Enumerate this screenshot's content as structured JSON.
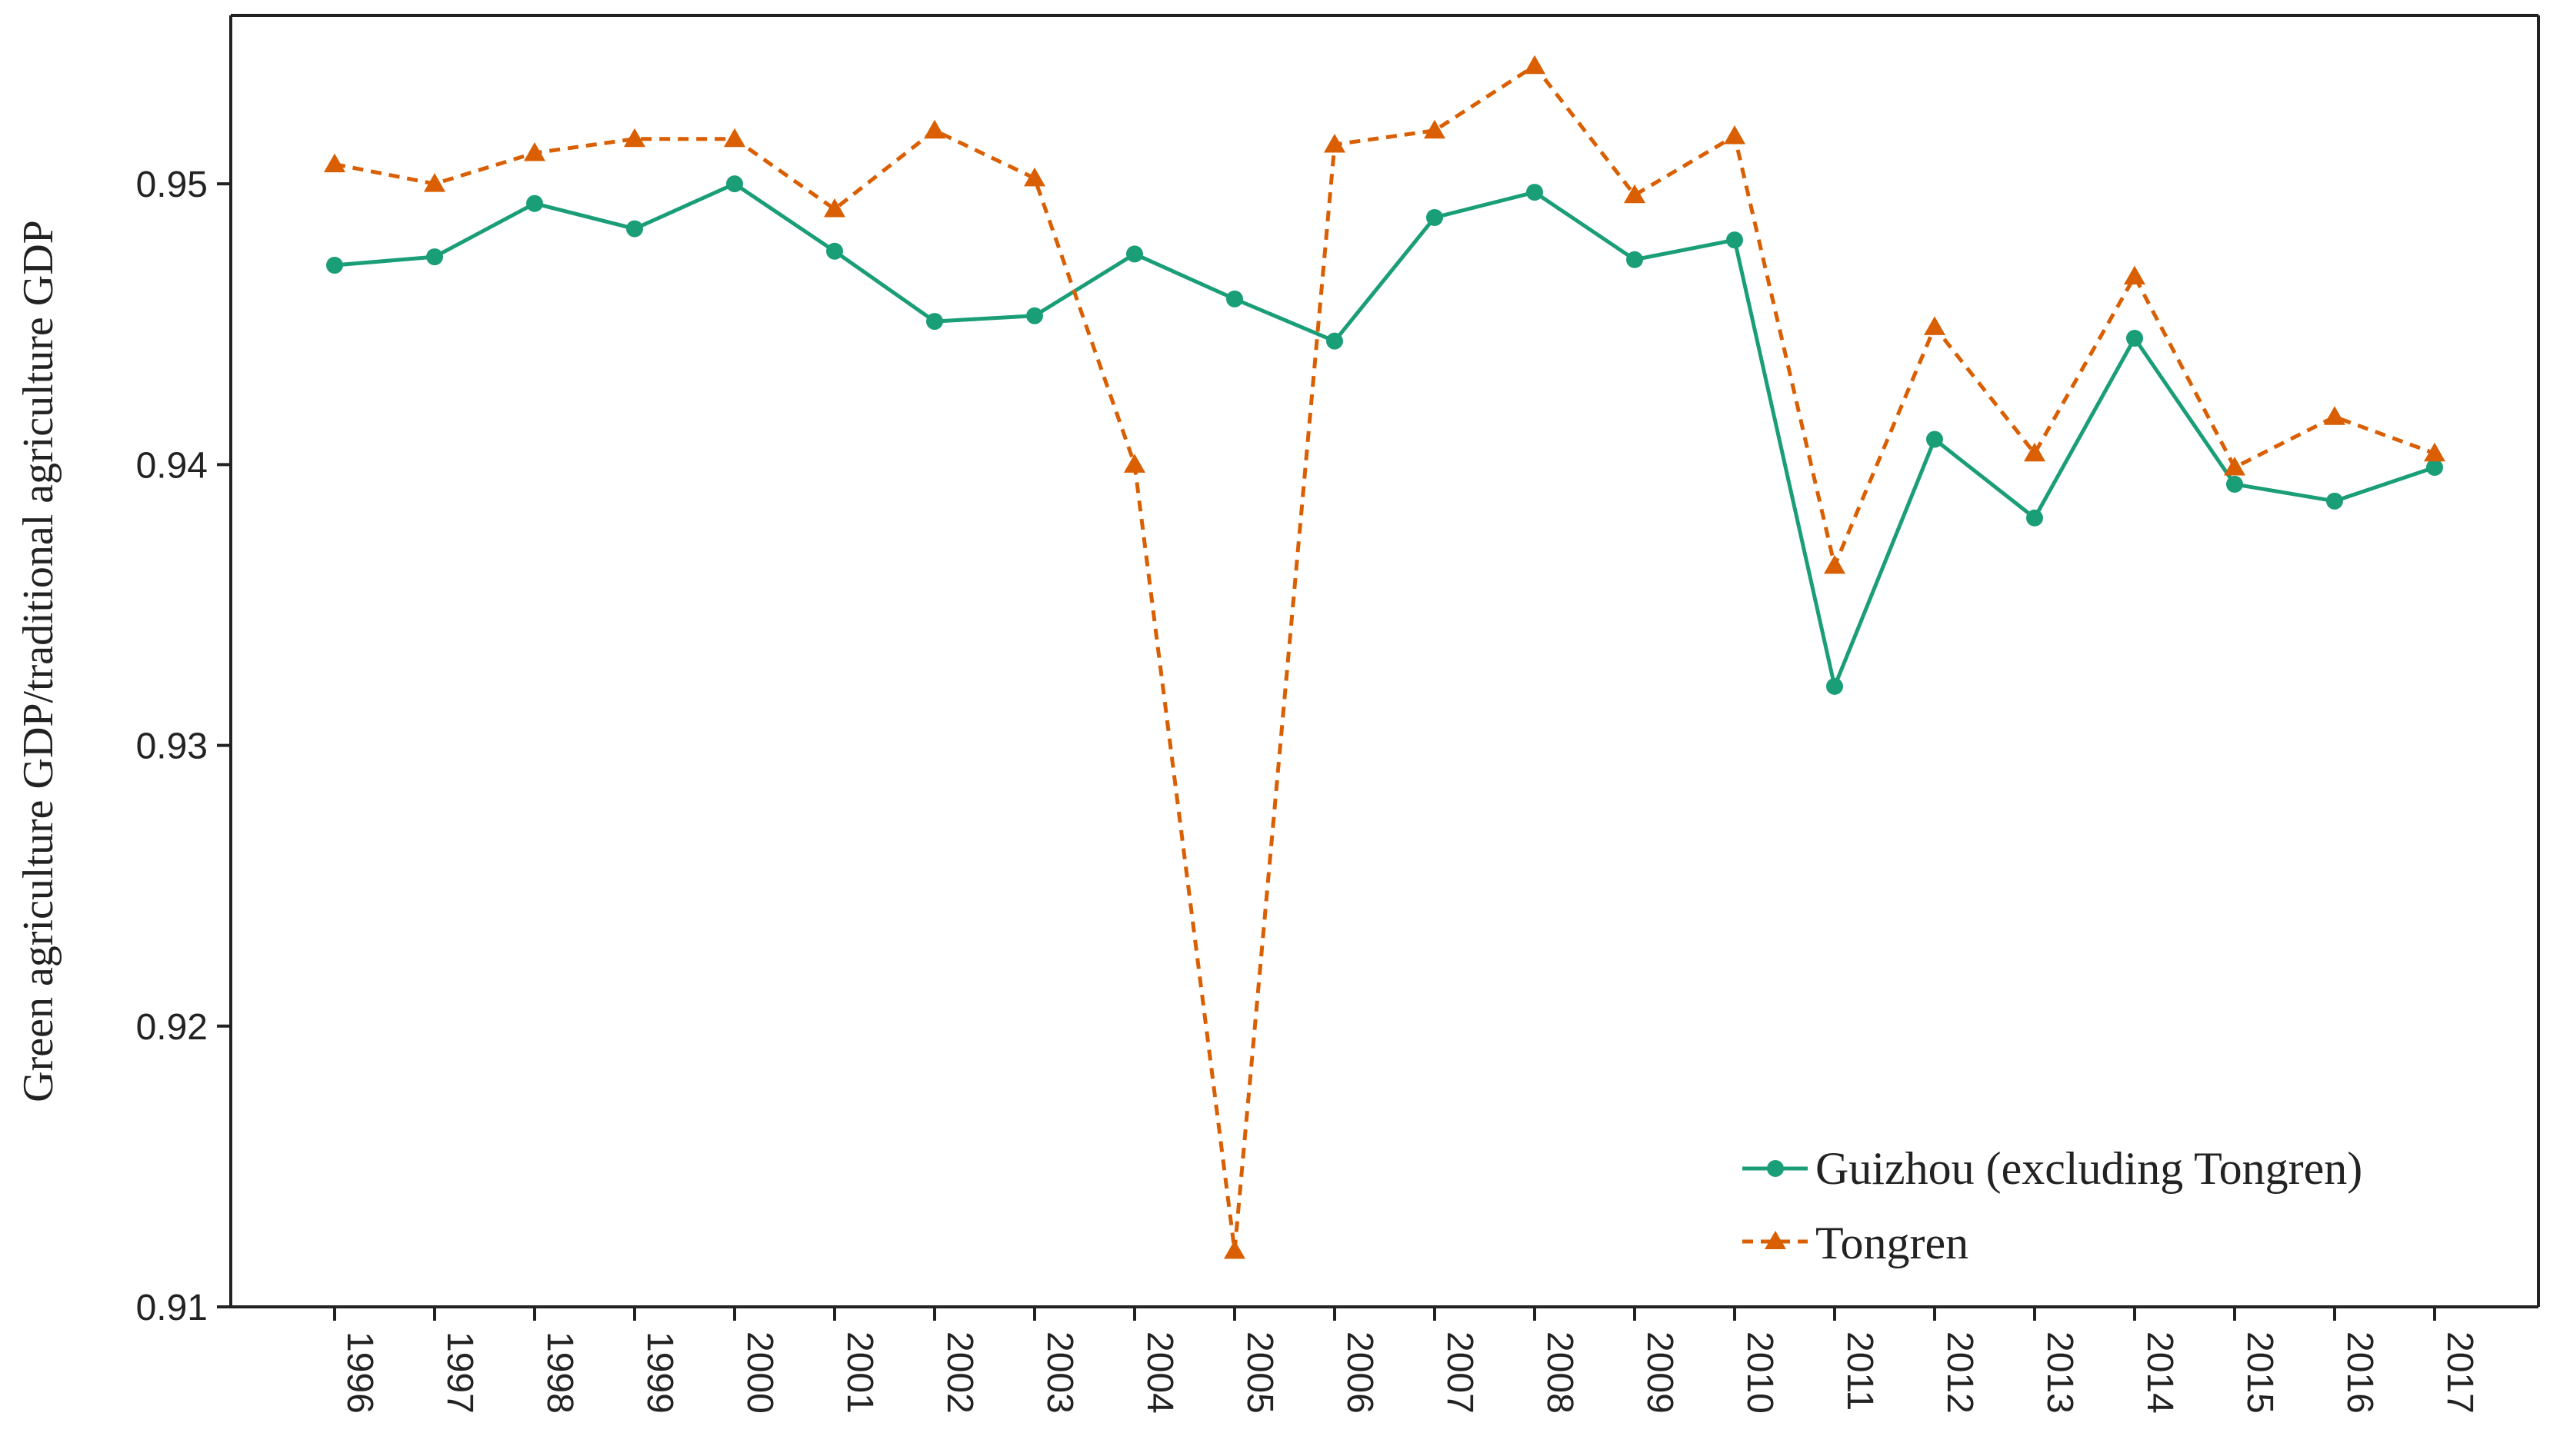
{
  "chart_data": {
    "type": "line",
    "title": "",
    "xlabel": "",
    "ylabel": "Green agriculture GDP/traditional agriculture GDP",
    "ylim": [
      0.91,
      0.956
    ],
    "yticks": [
      "0.91",
      "0.92",
      "0.93",
      "0.94",
      "0.95"
    ],
    "yticks_values": [
      0.91,
      0.92,
      0.93,
      0.94,
      0.95
    ],
    "categories": [
      "1996",
      "1997",
      "1998",
      "1999",
      "2000",
      "2001",
      "2002",
      "2003",
      "2004",
      "2005",
      "2006",
      "2007",
      "2008",
      "2009",
      "2010",
      "2011",
      "2012",
      "2013",
      "2014",
      "2015",
      "2016",
      "2017"
    ],
    "legend_position": "bottom-right",
    "series": [
      {
        "name": "Guizhou (excluding Tongren)",
        "color": "#1a9e77",
        "marker": "circle",
        "line_style": "solid",
        "values": [
          0.9471,
          0.9474,
          0.9493,
          0.9484,
          0.95,
          0.9476,
          0.9451,
          0.9453,
          0.9475,
          0.9459,
          0.9444,
          0.9488,
          0.9497,
          0.9473,
          0.948,
          0.9321,
          0.9409,
          0.9381,
          0.9445,
          0.9393,
          0.9387,
          0.9399
        ]
      },
      {
        "name": "Tongren",
        "color": "#d95f02",
        "marker": "triangle",
        "line_style": "dashed",
        "values": [
          0.9507,
          0.95,
          0.9511,
          0.9516,
          0.9516,
          0.9491,
          0.9519,
          0.9502,
          0.94,
          0.912,
          0.9514,
          0.9519,
          0.9542,
          0.9496,
          0.9517,
          0.9364,
          0.9449,
          0.9404,
          0.9467,
          0.9399,
          0.9417,
          0.9404
        ]
      }
    ]
  }
}
